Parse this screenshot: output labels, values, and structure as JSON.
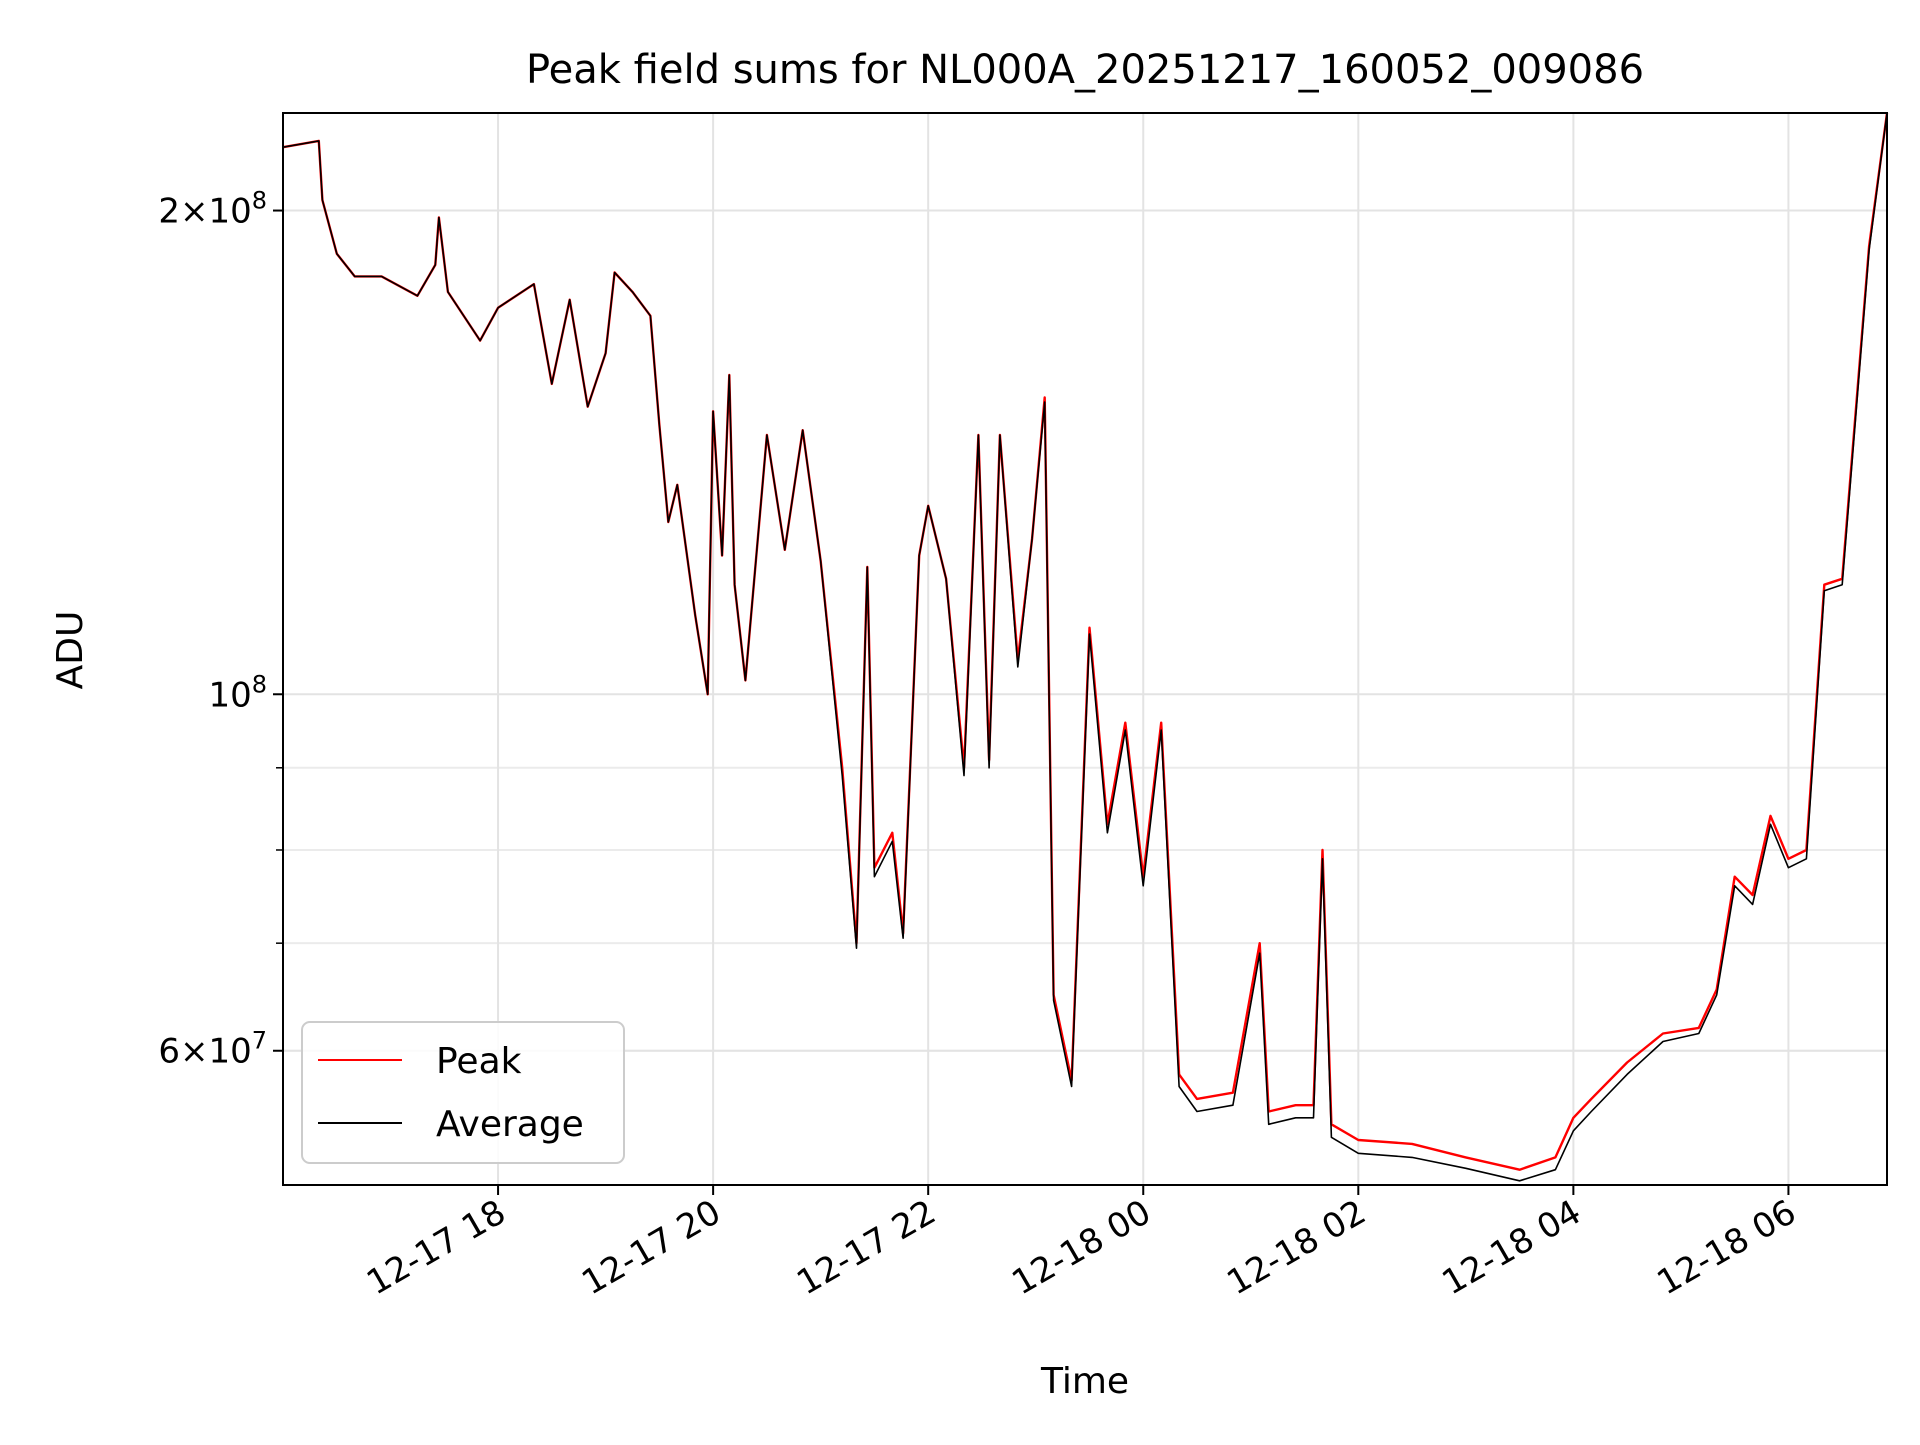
{
  "chart_data": {
    "type": "line",
    "title": "Peak field sums for NL000A_20251217_160052_009086",
    "xlabel": "Time",
    "ylabel": "ADU",
    "yscale": "log",
    "grid": true,
    "legend_position": "lower-left",
    "xlim": [
      "2025-12-17 16:00",
      "2025-12-18 06:55"
    ],
    "ylim": [
      49500000,
      230000000
    ],
    "x_ticks": [
      "12-17 18",
      "12-17 20",
      "12-17 22",
      "12-18 00",
      "12-18 02",
      "12-18 04",
      "12-18 06"
    ],
    "y_ticks": [
      {
        "base": "2",
        "times": "×",
        "exp_base": "10",
        "exp": "8",
        "value": 200000000
      },
      {
        "base": "",
        "times": "",
        "exp_base": "10",
        "exp": "8",
        "value": 100000000
      },
      {
        "base": "6",
        "times": "×",
        "exp_base": "10",
        "exp": "7",
        "value": 60000000
      }
    ],
    "series": [
      {
        "name": "Peak",
        "color": "#ff0000",
        "points": [
          [
            "2025-12-17 16:00",
            219000000
          ],
          [
            "2025-12-17 16:20",
            221000000
          ],
          [
            "2025-12-17 16:22",
            203000000
          ],
          [
            "2025-12-17 16:30",
            188000000
          ],
          [
            "2025-12-17 16:40",
            182000000
          ],
          [
            "2025-12-17 16:55",
            182000000
          ],
          [
            "2025-12-17 17:15",
            177000000
          ],
          [
            "2025-12-17 17:25",
            185000000
          ],
          [
            "2025-12-17 17:27",
            198000000
          ],
          [
            "2025-12-17 17:32",
            178000000
          ],
          [
            "2025-12-17 17:50",
            166000000
          ],
          [
            "2025-12-17 18:00",
            174000000
          ],
          [
            "2025-12-17 18:20",
            180000000
          ],
          [
            "2025-12-17 18:30",
            156000000
          ],
          [
            "2025-12-17 18:40",
            176000000
          ],
          [
            "2025-12-17 18:50",
            151000000
          ],
          [
            "2025-12-17 19:00",
            163000000
          ],
          [
            "2025-12-17 19:05",
            183000000
          ],
          [
            "2025-12-17 19:15",
            178000000
          ],
          [
            "2025-12-17 19:25",
            172000000
          ],
          [
            "2025-12-17 19:30",
            147000000
          ],
          [
            "2025-12-17 19:35",
            128000000
          ],
          [
            "2025-12-17 19:40",
            135000000
          ],
          [
            "2025-12-17 19:50",
            112000000
          ],
          [
            "2025-12-17 19:57",
            100000000
          ],
          [
            "2025-12-17 20:00",
            150000000
          ],
          [
            "2025-12-17 20:05",
            122000000
          ],
          [
            "2025-12-17 20:09",
            158000000
          ],
          [
            "2025-12-17 20:12",
            117000000
          ],
          [
            "2025-12-17 20:18",
            102000000
          ],
          [
            "2025-12-17 20:30",
            145000000
          ],
          [
            "2025-12-17 20:40",
            123000000
          ],
          [
            "2025-12-17 20:50",
            146000000
          ],
          [
            "2025-12-17 21:00",
            121000000
          ],
          [
            "2025-12-17 21:12",
            90000000
          ],
          [
            "2025-12-17 21:20",
            70000000
          ],
          [
            "2025-12-17 21:26",
            120000000
          ],
          [
            "2025-12-17 21:30",
            78000000
          ],
          [
            "2025-12-17 21:40",
            82000000
          ],
          [
            "2025-12-17 21:46",
            71000000
          ],
          [
            "2025-12-17 21:55",
            122000000
          ],
          [
            "2025-12-17 22:00",
            131000000
          ],
          [
            "2025-12-17 22:10",
            118000000
          ],
          [
            "2025-12-17 22:20",
            90000000
          ],
          [
            "2025-12-17 22:28",
            145000000
          ],
          [
            "2025-12-17 22:34",
            91000000
          ],
          [
            "2025-12-17 22:40",
            145000000
          ],
          [
            "2025-12-17 22:50",
            105000000
          ],
          [
            "2025-12-17 22:58",
            125000000
          ],
          [
            "2025-12-17 23:05",
            153000000
          ],
          [
            "2025-12-17 23:10",
            65000000
          ],
          [
            "2025-12-17 23:20",
            57500000
          ],
          [
            "2025-12-17 23:30",
            110000000
          ],
          [
            "2025-12-17 23:40",
            83000000
          ],
          [
            "2025-12-17 23:50",
            96000000
          ],
          [
            "2025-12-18 00:00",
            77000000
          ],
          [
            "2025-12-18 00:10",
            96000000
          ],
          [
            "2025-12-18 00:20",
            58000000
          ],
          [
            "2025-12-18 00:30",
            56000000
          ],
          [
            "2025-12-18 00:50",
            56500000
          ],
          [
            "2025-12-18 01:05",
            70000000
          ],
          [
            "2025-12-18 01:10",
            55000000
          ],
          [
            "2025-12-18 01:25",
            55500000
          ],
          [
            "2025-12-18 01:35",
            55500000
          ],
          [
            "2025-12-18 01:40",
            80000000
          ],
          [
            "2025-12-18 01:45",
            54000000
          ],
          [
            "2025-12-18 02:00",
            52800000
          ],
          [
            "2025-12-18 02:30",
            52500000
          ],
          [
            "2025-12-18 03:00",
            51500000
          ],
          [
            "2025-12-18 03:30",
            50600000
          ],
          [
            "2025-12-18 03:50",
            51500000
          ],
          [
            "2025-12-18 04:00",
            54500000
          ],
          [
            "2025-12-18 04:10",
            56000000
          ],
          [
            "2025-12-18 04:30",
            59000000
          ],
          [
            "2025-12-18 04:50",
            61500000
          ],
          [
            "2025-12-18 05:10",
            62000000
          ],
          [
            "2025-12-18 05:20",
            65500000
          ],
          [
            "2025-12-18 05:30",
            77000000
          ],
          [
            "2025-12-18 05:40",
            75000000
          ],
          [
            "2025-12-18 05:50",
            84000000
          ],
          [
            "2025-12-18 06:00",
            79000000
          ],
          [
            "2025-12-18 06:10",
            80000000
          ],
          [
            "2025-12-18 06:20",
            117000000
          ],
          [
            "2025-12-18 06:30",
            118000000
          ],
          [
            "2025-12-18 06:45",
            190000000
          ],
          [
            "2025-12-18 06:55",
            230000000
          ]
        ]
      },
      {
        "name": "Average",
        "color": "#000000",
        "points": [
          [
            "2025-12-17 16:00",
            219000000
          ],
          [
            "2025-12-17 16:20",
            221000000
          ],
          [
            "2025-12-17 16:22",
            203000000
          ],
          [
            "2025-12-17 16:30",
            188000000
          ],
          [
            "2025-12-17 16:40",
            182000000
          ],
          [
            "2025-12-17 16:55",
            182000000
          ],
          [
            "2025-12-17 17:15",
            177000000
          ],
          [
            "2025-12-17 17:25",
            185000000
          ],
          [
            "2025-12-17 17:27",
            198000000
          ],
          [
            "2025-12-17 17:32",
            178000000
          ],
          [
            "2025-12-17 17:50",
            166000000
          ],
          [
            "2025-12-17 18:00",
            174000000
          ],
          [
            "2025-12-17 18:20",
            180000000
          ],
          [
            "2025-12-17 18:30",
            156000000
          ],
          [
            "2025-12-17 18:40",
            176000000
          ],
          [
            "2025-12-17 18:50",
            151000000
          ],
          [
            "2025-12-17 19:00",
            163000000
          ],
          [
            "2025-12-17 19:05",
            183000000
          ],
          [
            "2025-12-17 19:15",
            178000000
          ],
          [
            "2025-12-17 19:25",
            172000000
          ],
          [
            "2025-12-17 19:30",
            147000000
          ],
          [
            "2025-12-17 19:35",
            128000000
          ],
          [
            "2025-12-17 19:40",
            135000000
          ],
          [
            "2025-12-17 19:50",
            112000000
          ],
          [
            "2025-12-17 19:57",
            100000000
          ],
          [
            "2025-12-17 20:00",
            150000000
          ],
          [
            "2025-12-17 20:05",
            122000000
          ],
          [
            "2025-12-17 20:09",
            158000000
          ],
          [
            "2025-12-17 20:12",
            117000000
          ],
          [
            "2025-12-17 20:18",
            102000000
          ],
          [
            "2025-12-17 20:30",
            145000000
          ],
          [
            "2025-12-17 20:40",
            123000000
          ],
          [
            "2025-12-17 20:50",
            146000000
          ],
          [
            "2025-12-17 21:00",
            121000000
          ],
          [
            "2025-12-17 21:12",
            89000000
          ],
          [
            "2025-12-17 21:20",
            69500000
          ],
          [
            "2025-12-17 21:26",
            120000000
          ],
          [
            "2025-12-17 21:30",
            77000000
          ],
          [
            "2025-12-17 21:40",
            81000000
          ],
          [
            "2025-12-17 21:46",
            70500000
          ],
          [
            "2025-12-17 21:55",
            122000000
          ],
          [
            "2025-12-17 22:00",
            131000000
          ],
          [
            "2025-12-17 22:10",
            118000000
          ],
          [
            "2025-12-17 22:20",
            89000000
          ],
          [
            "2025-12-17 22:28",
            145000000
          ],
          [
            "2025-12-17 22:34",
            90000000
          ],
          [
            "2025-12-17 22:40",
            145000000
          ],
          [
            "2025-12-17 22:50",
            104000000
          ],
          [
            "2025-12-17 22:58",
            125000000
          ],
          [
            "2025-12-17 23:05",
            152000000
          ],
          [
            "2025-12-17 23:10",
            64500000
          ],
          [
            "2025-12-17 23:20",
            57000000
          ],
          [
            "2025-12-17 23:30",
            109000000
          ],
          [
            "2025-12-17 23:40",
            82000000
          ],
          [
            "2025-12-17 23:50",
            95000000
          ],
          [
            "2025-12-18 00:00",
            76000000
          ],
          [
            "2025-12-18 00:10",
            95000000
          ],
          [
            "2025-12-18 00:20",
            57000000
          ],
          [
            "2025-12-18 00:30",
            55000000
          ],
          [
            "2025-12-18 00:50",
            55500000
          ],
          [
            "2025-12-18 01:05",
            69000000
          ],
          [
            "2025-12-18 01:10",
            54000000
          ],
          [
            "2025-12-18 01:25",
            54500000
          ],
          [
            "2025-12-18 01:35",
            54500000
          ],
          [
            "2025-12-18 01:40",
            79000000
          ],
          [
            "2025-12-18 01:45",
            53000000
          ],
          [
            "2025-12-18 02:00",
            51800000
          ],
          [
            "2025-12-18 02:30",
            51500000
          ],
          [
            "2025-12-18 03:00",
            50700000
          ],
          [
            "2025-12-18 03:30",
            49800000
          ],
          [
            "2025-12-18 03:50",
            50600000
          ],
          [
            "2025-12-18 04:00",
            53500000
          ],
          [
            "2025-12-18 04:10",
            55000000
          ],
          [
            "2025-12-18 04:30",
            58000000
          ],
          [
            "2025-12-18 04:50",
            60800000
          ],
          [
            "2025-12-18 05:10",
            61500000
          ],
          [
            "2025-12-18 05:20",
            65000000
          ],
          [
            "2025-12-18 05:30",
            76000000
          ],
          [
            "2025-12-18 05:40",
            74000000
          ],
          [
            "2025-12-18 05:50",
            83000000
          ],
          [
            "2025-12-18 06:00",
            78000000
          ],
          [
            "2025-12-18 06:10",
            79000000
          ],
          [
            "2025-12-18 06:20",
            116000000
          ],
          [
            "2025-12-18 06:30",
            117000000
          ],
          [
            "2025-12-18 06:45",
            189000000
          ],
          [
            "2025-12-18 06:55",
            230000000
          ]
        ]
      }
    ]
  }
}
